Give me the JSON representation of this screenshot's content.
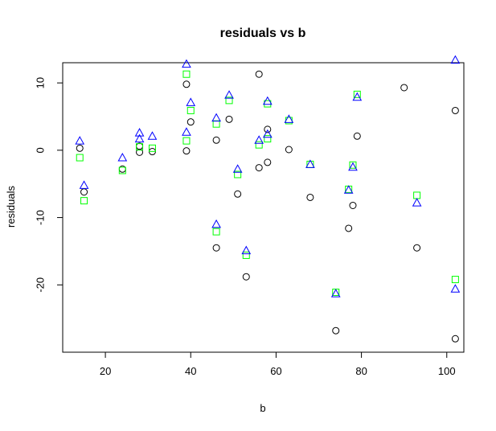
{
  "chart_data": {
    "type": "scatter",
    "title": "residuals vs b",
    "xlabel": "b",
    "ylabel": "residuals",
    "xlim": [
      10,
      104
    ],
    "ylim": [
      -30,
      13
    ],
    "x_ticks": [
      20,
      40,
      60,
      80,
      100
    ],
    "y_ticks": [
      -20,
      -10,
      0,
      10
    ],
    "grid": false,
    "legend": "none",
    "series": [
      {
        "marker": "circle",
        "color": "#000000",
        "points": [
          [
            14,
            0.3
          ],
          [
            15,
            -6.2
          ],
          [
            24,
            -2.8
          ],
          [
            28,
            0.6
          ],
          [
            28,
            -0.3
          ],
          [
            31,
            -0.2
          ],
          [
            39,
            9.8
          ],
          [
            39,
            -0.1
          ],
          [
            40,
            4.2
          ],
          [
            46,
            -14.5
          ],
          [
            46,
            1.5
          ],
          [
            49,
            4.6
          ],
          [
            51,
            -6.5
          ],
          [
            53,
            -18.8
          ],
          [
            56,
            -2.6
          ],
          [
            56,
            11.3
          ],
          [
            58,
            3.1
          ],
          [
            58,
            -1.8
          ],
          [
            63,
            0.1
          ],
          [
            68,
            -7.0
          ],
          [
            74,
            -26.8
          ],
          [
            77,
            -11.6
          ],
          [
            78,
            -8.2
          ],
          [
            79,
            2.1
          ],
          [
            90,
            9.3
          ],
          [
            93,
            -14.5
          ],
          [
            102,
            5.9
          ],
          [
            102,
            -28.0
          ]
        ]
      },
      {
        "marker": "square",
        "color": "#00ff00",
        "points": [
          [
            14,
            -1.1
          ],
          [
            15,
            -7.5
          ],
          [
            24,
            -3.0
          ],
          [
            28,
            0.5
          ],
          [
            31,
            0.3
          ],
          [
            39,
            11.3
          ],
          [
            39,
            1.4
          ],
          [
            40,
            5.9
          ],
          [
            46,
            -12.1
          ],
          [
            46,
            3.9
          ],
          [
            49,
            7.4
          ],
          [
            51,
            -3.6
          ],
          [
            53,
            -15.6
          ],
          [
            56,
            0.8
          ],
          [
            58,
            1.7
          ],
          [
            58,
            6.9
          ],
          [
            63,
            4.4
          ],
          [
            68,
            -2.1
          ],
          [
            74,
            -21.1
          ],
          [
            77,
            -5.8
          ],
          [
            78,
            -2.2
          ],
          [
            79,
            8.3
          ],
          [
            93,
            -6.7
          ],
          [
            102,
            -19.2
          ]
        ]
      },
      {
        "marker": "triangle",
        "color": "#0000ff",
        "points": [
          [
            14,
            1.4
          ],
          [
            15,
            -5.2
          ],
          [
            24,
            -1.1
          ],
          [
            28,
            2.6
          ],
          [
            28,
            1.7
          ],
          [
            31,
            2.1
          ],
          [
            39,
            12.8
          ],
          [
            39,
            2.7
          ],
          [
            40,
            7.1
          ],
          [
            46,
            -11.0
          ],
          [
            46,
            4.8
          ],
          [
            49,
            8.2
          ],
          [
            51,
            -2.8
          ],
          [
            53,
            -14.9
          ],
          [
            56,
            1.5
          ],
          [
            58,
            2.4
          ],
          [
            58,
            7.3
          ],
          [
            63,
            4.6
          ],
          [
            68,
            -2.1
          ],
          [
            74,
            -21.3
          ],
          [
            77,
            -5.9
          ],
          [
            78,
            -2.5
          ],
          [
            79,
            7.9
          ],
          [
            93,
            -7.8
          ],
          [
            102,
            13.4
          ],
          [
            102,
            -20.6
          ]
        ]
      }
    ]
  }
}
